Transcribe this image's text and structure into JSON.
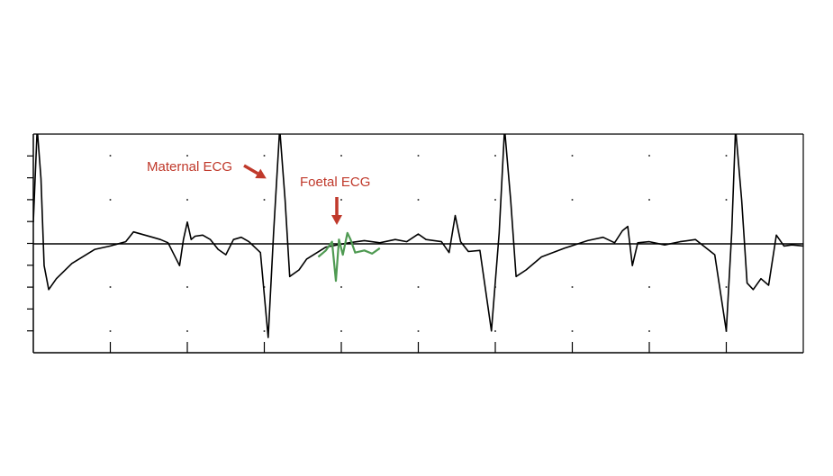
{
  "chart_data": {
    "type": "line",
    "title": "",
    "xlabel": "",
    "ylabel": "",
    "x_tick_count": 10,
    "y_tick_count": 10,
    "grid": "dotted",
    "baseline_y": 0,
    "ylim": [
      -5,
      5
    ],
    "xlim": [
      0,
      10
    ],
    "series": [
      {
        "color": "#000000",
        "points": [
          [
            0,
            1
          ],
          [
            0.05,
            5.3
          ],
          [
            0.1,
            3
          ],
          [
            0.14,
            -1
          ],
          [
            0.2,
            -2.1
          ],
          [
            0.3,
            -1.6
          ],
          [
            0.5,
            -0.9
          ],
          [
            0.8,
            -0.25
          ],
          [
            1.0,
            -0.1
          ],
          [
            1.2,
            0.1
          ],
          [
            1.3,
            0.55
          ],
          [
            1.45,
            0.4
          ],
          [
            1.55,
            0.3
          ],
          [
            1.65,
            0.2
          ],
          [
            1.75,
            0.05
          ],
          [
            1.9,
            -1.0
          ],
          [
            1.95,
            0.2
          ],
          [
            2.0,
            1.0
          ],
          [
            2.05,
            0.2
          ],
          [
            2.1,
            0.35
          ],
          [
            2.2,
            0.4
          ],
          [
            2.3,
            0.2
          ],
          [
            2.4,
            -0.25
          ],
          [
            2.5,
            -0.5
          ],
          [
            2.6,
            0.2
          ],
          [
            2.7,
            0.3
          ],
          [
            2.8,
            0.1
          ],
          [
            2.95,
            -0.4
          ],
          [
            3.05,
            -4.3
          ],
          [
            3.12,
            0.5
          ],
          [
            3.2,
            5.3
          ],
          [
            3.27,
            2.0
          ],
          [
            3.33,
            -1.5
          ],
          [
            3.45,
            -1.2
          ],
          [
            3.55,
            -0.7
          ],
          [
            3.8,
            -0.15
          ],
          [
            4.1,
            0.05
          ],
          [
            4.3,
            0.15
          ],
          [
            4.5,
            0.05
          ],
          [
            4.7,
            0.2
          ],
          [
            4.85,
            0.1
          ],
          [
            5.0,
            0.45
          ],
          [
            5.1,
            0.2
          ],
          [
            5.3,
            0.1
          ],
          [
            5.4,
            -0.4
          ],
          [
            5.48,
            1.3
          ],
          [
            5.55,
            0.1
          ],
          [
            5.65,
            -0.35
          ],
          [
            5.8,
            -0.3
          ],
          [
            5.95,
            -4.0
          ],
          [
            6.05,
            0.5
          ],
          [
            6.12,
            5.3
          ],
          [
            6.2,
            2.0
          ],
          [
            6.27,
            -1.5
          ],
          [
            6.4,
            -1.2
          ],
          [
            6.6,
            -0.6
          ],
          [
            6.9,
            -0.2
          ],
          [
            7.2,
            0.15
          ],
          [
            7.4,
            0.3
          ],
          [
            7.55,
            0.05
          ],
          [
            7.65,
            0.6
          ],
          [
            7.72,
            0.8
          ],
          [
            7.78,
            -1.0
          ],
          [
            7.85,
            0.05
          ],
          [
            8.0,
            0.1
          ],
          [
            8.2,
            -0.05
          ],
          [
            8.4,
            0.1
          ],
          [
            8.6,
            0.2
          ],
          [
            8.85,
            -0.5
          ],
          [
            9.0,
            -4.0
          ],
          [
            9.07,
            0.5
          ],
          [
            9.12,
            5.3
          ],
          [
            9.2,
            2.0
          ],
          [
            9.27,
            -1.8
          ],
          [
            9.35,
            -2.1
          ],
          [
            9.45,
            -1.6
          ],
          [
            9.55,
            -1.9
          ],
          [
            9.65,
            0.4
          ],
          [
            9.75,
            -0.1
          ],
          [
            9.85,
            -0.05
          ],
          [
            10.0,
            -0.1
          ]
        ]
      },
      {
        "color": "#4f9a52",
        "points": [
          [
            3.7,
            -0.6
          ],
          [
            3.8,
            -0.3
          ],
          [
            3.88,
            0.1
          ],
          [
            3.93,
            -1.7
          ],
          [
            3.97,
            0.2
          ],
          [
            4.02,
            -0.5
          ],
          [
            4.08,
            0.5
          ],
          [
            4.12,
            0.2
          ],
          [
            4.18,
            -0.4
          ],
          [
            4.3,
            -0.3
          ],
          [
            4.4,
            -0.45
          ],
          [
            4.5,
            -0.2
          ]
        ]
      }
    ],
    "annotations": [
      {
        "text": "Maternal ECG",
        "target": [
          3.05,
          3.0
        ],
        "color": "#c0392b"
      },
      {
        "text": "Foetal ECG",
        "target": [
          4.05,
          0.9
        ],
        "color": "#c0392b"
      }
    ]
  }
}
